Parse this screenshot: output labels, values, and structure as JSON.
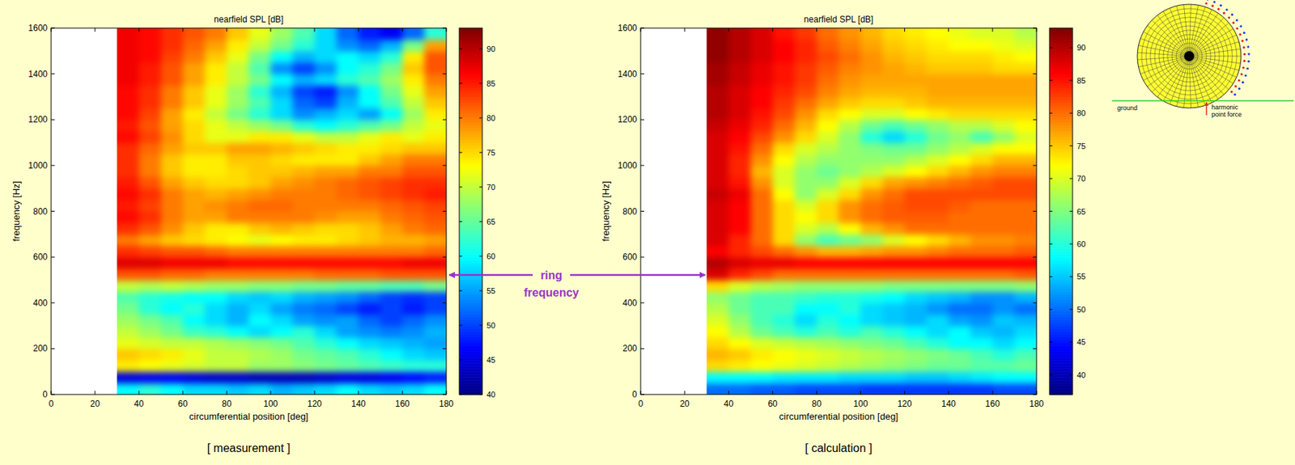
{
  "chart_data": [
    {
      "type": "heatmap",
      "title": "nearfield SPL [dB]",
      "x_label": "circumferential position [deg]",
      "y_label": "frequency [Hz]",
      "caption": "[ measurement ]",
      "xlim": [
        0,
        180
      ],
      "xticks": [
        0,
        20,
        40,
        60,
        80,
        100,
        120,
        140,
        160,
        180
      ],
      "ylim": [
        0,
        1600
      ],
      "yticks": [
        0,
        200,
        400,
        600,
        800,
        1000,
        1200,
        1400,
        1600
      ],
      "colorbar": {
        "range": [
          40,
          93
        ],
        "ticks": [
          40,
          45,
          50,
          55,
          60,
          65,
          70,
          75,
          80,
          85,
          90
        ]
      },
      "x": [
        35,
        45,
        55,
        65,
        75,
        85,
        95,
        105,
        115,
        125,
        135,
        145,
        155,
        165,
        175
      ],
      "y": [
        25,
        75,
        125,
        175,
        225,
        275,
        325,
        375,
        425,
        475,
        525,
        575,
        625,
        675,
        725,
        775,
        825,
        875,
        925,
        975,
        1025,
        1075,
        1125,
        1175,
        1225,
        1275,
        1325,
        1375,
        1425,
        1475,
        1525,
        1575
      ],
      "values": [
        [
          60,
          62,
          60,
          58,
          58,
          57,
          58,
          56,
          57,
          58,
          60,
          58,
          57,
          58,
          60
        ],
        [
          45,
          46,
          46,
          45,
          44,
          44,
          43,
          43,
          43,
          44,
          45,
          45,
          46,
          47,
          48
        ],
        [
          74,
          73,
          72,
          71,
          70,
          70,
          68,
          68,
          67,
          66,
          65,
          64,
          63,
          62,
          62
        ],
        [
          76,
          75,
          74,
          72,
          70,
          70,
          69,
          68,
          66,
          65,
          64,
          62,
          60,
          58,
          57
        ],
        [
          72,
          71,
          70,
          70,
          69,
          68,
          67,
          66,
          64,
          62,
          60,
          58,
          57,
          56,
          55
        ],
        [
          70,
          68,
          66,
          63,
          62,
          60,
          58,
          60,
          62,
          58,
          55,
          54,
          53,
          54,
          56
        ],
        [
          68,
          66,
          64,
          60,
          58,
          56,
          60,
          58,
          55,
          54,
          55,
          52,
          50,
          52,
          54
        ],
        [
          66,
          62,
          60,
          62,
          58,
          56,
          58,
          55,
          53,
          52,
          50,
          48,
          50,
          48,
          50
        ],
        [
          64,
          62,
          61,
          60,
          60,
          58,
          57,
          58,
          56,
          55,
          54,
          52,
          50,
          49,
          50
        ],
        [
          70,
          69,
          70,
          69,
          68,
          68,
          67,
          67,
          66,
          66,
          65,
          65,
          64,
          64,
          66
        ],
        [
          82,
          82,
          81,
          81,
          80,
          80,
          80,
          80,
          80,
          81,
          81,
          81,
          82,
          82,
          82
        ],
        [
          88,
          88,
          87,
          87,
          87,
          86,
          86,
          86,
          86,
          86,
          86,
          86,
          86,
          87,
          87
        ],
        [
          84,
          83,
          82,
          82,
          81,
          80,
          80,
          80,
          80,
          80,
          80,
          80,
          80,
          80,
          81
        ],
        [
          80,
          78,
          76,
          75,
          74,
          73,
          72,
          73,
          74,
          74,
          75,
          76,
          77,
          77,
          78
        ],
        [
          84,
          82,
          79,
          76,
          74,
          74,
          76,
          77,
          76,
          75,
          75,
          76,
          78,
          80,
          81
        ],
        [
          86,
          84,
          80,
          78,
          78,
          80,
          80,
          80,
          80,
          79,
          78,
          78,
          80,
          81,
          82
        ],
        [
          85,
          83,
          80,
          78,
          79,
          80,
          81,
          81,
          80,
          80,
          80,
          80,
          81,
          82,
          83
        ],
        [
          86,
          84,
          80,
          78,
          77,
          78,
          79,
          80,
          80,
          80,
          81,
          82,
          83,
          84,
          85
        ],
        [
          85,
          82,
          78,
          76,
          75,
          75,
          76,
          78,
          79,
          80,
          81,
          82,
          83,
          84,
          84
        ],
        [
          84,
          80,
          76,
          74,
          74,
          75,
          76,
          76,
          77,
          78,
          78,
          80,
          80,
          82,
          82
        ],
        [
          84,
          80,
          76,
          74,
          74,
          76,
          76,
          75,
          74,
          74,
          74,
          76,
          78,
          80,
          80
        ],
        [
          84,
          81,
          78,
          76,
          76,
          78,
          78,
          77,
          76,
          75,
          74,
          74,
          75,
          76,
          76
        ],
        [
          86,
          83,
          79,
          75,
          72,
          72,
          74,
          74,
          72,
          70,
          70,
          72,
          74,
          72,
          74
        ],
        [
          85,
          82,
          78,
          75,
          72,
          70,
          68,
          66,
          62,
          60,
          62,
          64,
          66,
          70,
          72
        ],
        [
          86,
          83,
          78,
          74,
          70,
          66,
          62,
          58,
          54,
          56,
          58,
          55,
          60,
          68,
          74
        ],
        [
          86,
          84,
          80,
          76,
          72,
          68,
          64,
          58,
          52,
          50,
          56,
          60,
          64,
          70,
          76
        ],
        [
          86,
          84,
          80,
          76,
          72,
          68,
          62,
          56,
          50,
          48,
          54,
          60,
          66,
          72,
          78
        ],
        [
          87,
          85,
          82,
          78,
          74,
          70,
          66,
          60,
          56,
          58,
          62,
          64,
          68,
          74,
          80
        ],
        [
          87,
          85,
          82,
          78,
          74,
          70,
          64,
          54,
          50,
          54,
          60,
          62,
          66,
          76,
          82
        ],
        [
          87,
          86,
          83,
          80,
          76,
          72,
          66,
          60,
          56,
          58,
          60,
          58,
          62,
          74,
          82
        ],
        [
          87,
          86,
          84,
          81,
          78,
          74,
          70,
          66,
          62,
          58,
          54,
          52,
          56,
          66,
          78
        ],
        [
          87,
          86,
          84,
          82,
          80,
          76,
          72,
          68,
          64,
          58,
          52,
          48,
          46,
          52,
          62
        ]
      ]
    },
    {
      "type": "heatmap",
      "title": "nearfield SPL [dB]",
      "x_label": "circumferential position [deg]",
      "y_label": "frequency [Hz]",
      "caption": "[ calculation ]",
      "xlim": [
        0,
        180
      ],
      "xticks": [
        0,
        20,
        40,
        60,
        80,
        100,
        120,
        140,
        160,
        180
      ],
      "ylim": [
        0,
        1600
      ],
      "yticks": [
        0,
        200,
        400,
        600,
        800,
        1000,
        1200,
        1400,
        1600
      ],
      "colorbar": {
        "range": [
          37,
          93
        ],
        "ticks": [
          40,
          45,
          50,
          55,
          60,
          65,
          70,
          75,
          80,
          85,
          90
        ]
      },
      "x": [
        35,
        45,
        55,
        65,
        75,
        85,
        95,
        105,
        115,
        125,
        135,
        145,
        155,
        165,
        175
      ],
      "y": [
        25,
        75,
        125,
        175,
        225,
        275,
        325,
        375,
        425,
        475,
        525,
        575,
        625,
        675,
        725,
        775,
        825,
        875,
        925,
        975,
        1025,
        1075,
        1125,
        1175,
        1225,
        1275,
        1325,
        1375,
        1425,
        1475,
        1525,
        1575
      ],
      "values": [
        [
          50,
          50,
          49,
          49,
          48,
          48,
          48,
          47,
          47,
          47,
          47,
          47,
          47,
          48,
          48
        ],
        [
          58,
          58,
          58,
          57,
          57,
          57,
          56,
          56,
          56,
          55,
          55,
          56,
          57,
          58,
          58
        ],
        [
          74,
          73,
          72,
          71,
          70,
          69,
          68,
          67,
          66,
          65,
          64,
          64,
          63,
          63,
          64
        ],
        [
          76,
          75,
          73,
          72,
          71,
          70,
          69,
          68,
          67,
          66,
          65,
          64,
          62,
          60,
          62
        ],
        [
          74,
          72,
          70,
          69,
          68,
          67,
          66,
          65,
          64,
          62,
          60,
          58,
          58,
          56,
          58
        ],
        [
          72,
          68,
          64,
          62,
          60,
          62,
          60,
          62,
          60,
          58,
          56,
          58,
          55,
          54,
          56
        ],
        [
          70,
          66,
          62,
          60,
          56,
          60,
          58,
          56,
          55,
          54,
          56,
          53,
          52,
          55,
          54
        ],
        [
          68,
          64,
          62,
          62,
          58,
          58,
          60,
          56,
          55,
          54,
          52,
          50,
          50,
          52,
          50
        ],
        [
          66,
          64,
          62,
          62,
          61,
          60,
          60,
          59,
          58,
          56,
          55,
          54,
          52,
          52,
          54
        ],
        [
          74,
          70,
          68,
          67,
          66,
          66,
          66,
          66,
          65,
          65,
          65,
          65,
          65,
          65,
          66
        ],
        [
          88,
          84,
          82,
          80,
          80,
          80,
          80,
          80,
          80,
          80,
          80,
          80,
          80,
          80,
          81
        ],
        [
          90,
          88,
          87,
          87,
          86,
          86,
          86,
          86,
          86,
          86,
          86,
          86,
          86,
          86,
          86
        ],
        [
          86,
          84,
          82,
          80,
          78,
          76,
          76,
          77,
          78,
          78,
          79,
          80,
          80,
          80,
          81
        ],
        [
          88,
          84,
          80,
          74,
          66,
          62,
          64,
          66,
          70,
          72,
          74,
          76,
          78,
          78,
          79
        ],
        [
          88,
          86,
          80,
          74,
          70,
          68,
          72,
          76,
          78,
          80,
          80,
          80,
          80,
          80,
          80
        ],
        [
          88,
          86,
          80,
          74,
          72,
          74,
          78,
          80,
          81,
          81,
          81,
          80,
          80,
          80,
          80
        ],
        [
          88,
          86,
          80,
          74,
          70,
          74,
          78,
          80,
          81,
          82,
          82,
          81,
          80,
          80,
          80
        ],
        [
          89,
          87,
          80,
          72,
          66,
          70,
          74,
          78,
          80,
          82,
          82,
          82,
          82,
          82,
          82
        ],
        [
          88,
          85,
          78,
          70,
          66,
          66,
          70,
          74,
          77,
          78,
          79,
          80,
          81,
          82,
          82
        ],
        [
          88,
          84,
          76,
          70,
          66,
          64,
          66,
          68,
          70,
          72,
          74,
          76,
          78,
          79,
          79
        ],
        [
          88,
          84,
          78,
          72,
          68,
          66,
          66,
          66,
          66,
          68,
          70,
          72,
          74,
          76,
          76
        ],
        [
          88,
          85,
          80,
          74,
          70,
          68,
          66,
          65,
          64,
          64,
          66,
          68,
          70,
          72,
          72
        ],
        [
          88,
          86,
          82,
          78,
          74,
          70,
          66,
          60,
          56,
          60,
          64,
          66,
          62,
          66,
          70
        ],
        [
          89,
          87,
          84,
          80,
          76,
          72,
          68,
          64,
          62,
          64,
          66,
          68,
          68,
          70,
          72
        ],
        [
          90,
          88,
          85,
          82,
          78,
          74,
          72,
          70,
          70,
          72,
          73,
          74,
          74,
          74,
          74
        ],
        [
          90,
          88,
          86,
          83,
          80,
          77,
          75,
          74,
          74,
          75,
          76,
          76,
          76,
          76,
          76
        ],
        [
          90,
          88,
          86,
          84,
          82,
          79,
          77,
          76,
          76,
          76,
          77,
          77,
          77,
          77,
          77
        ],
        [
          91,
          89,
          87,
          85,
          83,
          80,
          78,
          77,
          77,
          77,
          77,
          77,
          77,
          77,
          77
        ],
        [
          91,
          89,
          87,
          85,
          83,
          81,
          79,
          78,
          77,
          76,
          75,
          75,
          75,
          74,
          74
        ],
        [
          92,
          90,
          88,
          86,
          84,
          82,
          80,
          78,
          76,
          75,
          74,
          74,
          74,
          73,
          72
        ],
        [
          92,
          90,
          88,
          86,
          84,
          81,
          79,
          77,
          75,
          74,
          73,
          72,
          72,
          71,
          70
        ],
        [
          92,
          90,
          88,
          85,
          83,
          80,
          78,
          76,
          74,
          73,
          72,
          71,
          70,
          70,
          68
        ]
      ]
    }
  ],
  "annotation": [
    "ring",
    "frequency"
  ],
  "inset": {
    "ground_label": "ground",
    "force_label": [
      "harmonic",
      "point force"
    ]
  }
}
